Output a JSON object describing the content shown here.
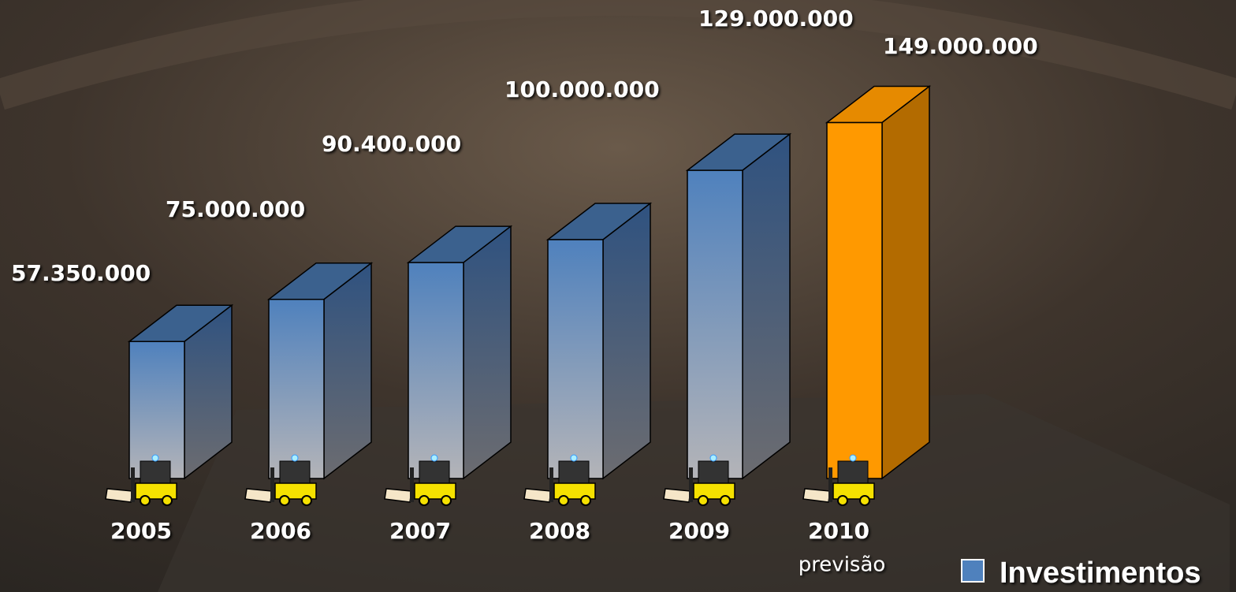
{
  "chart_data": {
    "type": "bar3d",
    "categories": [
      "2005",
      "2006",
      "2007",
      "2008",
      "2009",
      "2010"
    ],
    "annotation": "previsão",
    "series": [
      {
        "name": "Investimentos",
        "color": "#4f81bd",
        "values": [
          57350000,
          75000000,
          90400000,
          100000000,
          129000000,
          149000000
        ],
        "value_labels": [
          "57.350.000",
          "75.000.000",
          "90.400.000",
          "100.000.000",
          "129.000.000",
          "149.000.000"
        ]
      }
    ],
    "bar_colors": [
      "#4f81bd",
      "#4f81bd",
      "#4f81bd",
      "#4f81bd",
      "#4f81bd",
      "#ff9900"
    ]
  }
}
